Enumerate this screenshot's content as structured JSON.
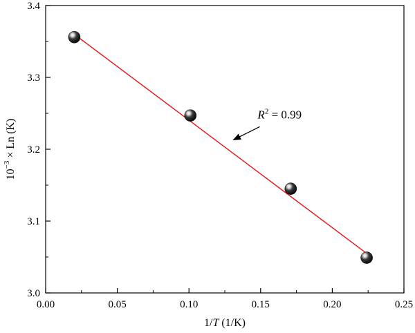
{
  "chart_data": {
    "type": "scatter",
    "xlim": [
      0.0,
      0.25
    ],
    "ylim": [
      3.0,
      3.4
    ],
    "x_ticks": [
      "0.00",
      "0.05",
      "0.10",
      "0.15",
      "0.20",
      "0.25"
    ],
    "y_ticks": [
      "3.0",
      "3.1",
      "3.2",
      "3.3",
      "3.4"
    ],
    "xlabel": {
      "prefix": "1/",
      "italic": "T",
      "suffix": " (1/K)"
    },
    "ylabel": {
      "base": "10",
      "exp": "−3",
      "rest": " × Ln (K)"
    },
    "points": [
      {
        "x": 0.02,
        "y": 3.356
      },
      {
        "x": 0.101,
        "y": 3.247
      },
      {
        "x": 0.171,
        "y": 3.145
      },
      {
        "x": 0.224,
        "y": 3.049
      }
    ],
    "fit_line": {
      "x": [
        0.02,
        0.224
      ],
      "y": [
        3.36,
        3.055
      ],
      "color": "#e02020"
    },
    "annotation": {
      "symbol": "R",
      "exp": "2",
      "text": " = 0.99",
      "anchor_data": {
        "x": 0.131,
        "y": 3.239
      },
      "arrow_tip_data": {
        "x": 0.131,
        "y": 3.213
      }
    },
    "marker_color": "#111111",
    "grid": false,
    "legend": "none"
  }
}
